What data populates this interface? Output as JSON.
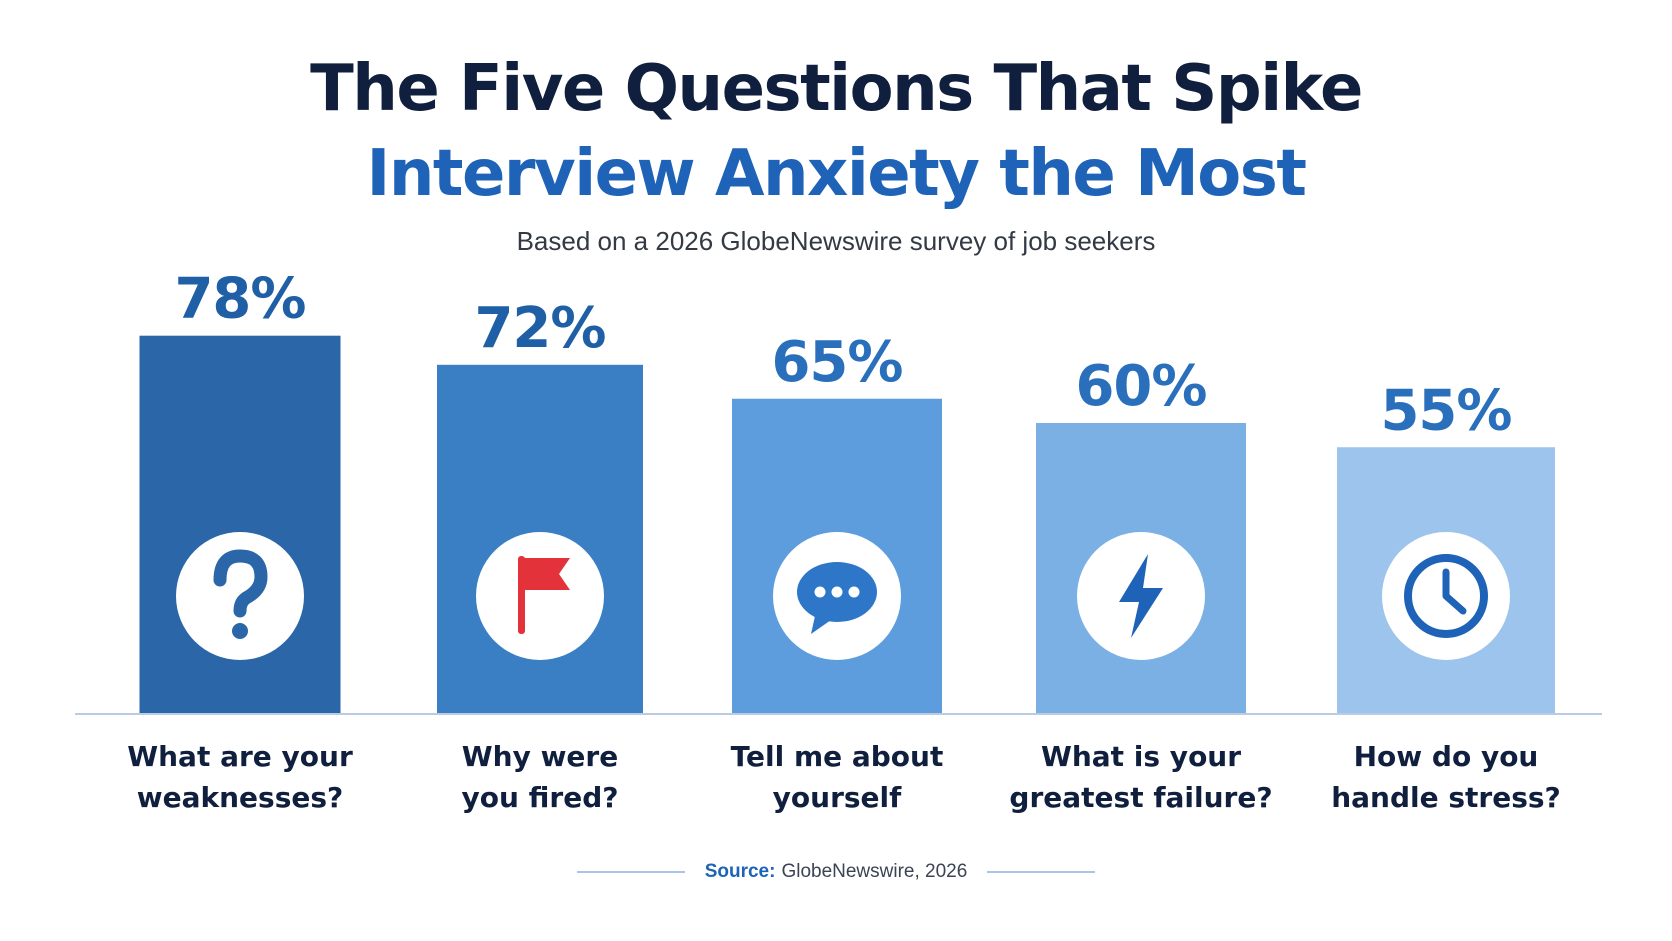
{
  "header": {
    "title_line1": "The Five Questions That Spike",
    "title_line2": "Interview Anxiety the Most",
    "subtitle": "Based on a 2026 GlobeNewswire survey of job seekers"
  },
  "source": {
    "label": "Source:",
    "text": "GlobeNewswire, 2026"
  },
  "colors": {
    "title_dark": "#0f1f3d",
    "title_blue": "#1e63b7",
    "bars": [
      "#2a66a8",
      "#3a7fc3",
      "#5d9ddd",
      "#7ab0e4",
      "#9cc4ec"
    ],
    "labels": [
      "#1f5fa5",
      "#1f5fa5",
      "#2a6fbc",
      "#2a6fbc",
      "#2a6fbc"
    ],
    "icon_flag": "#e4323b",
    "baseline": "#b9cce4"
  },
  "chart_data": {
    "type": "bar",
    "categories": [
      [
        "What are your",
        "weaknesses?"
      ],
      [
        "Why were",
        "you fired?"
      ],
      [
        "Tell me about",
        "yourself"
      ],
      [
        "What is your",
        "greatest failure?"
      ],
      [
        "How do you",
        "handle stress?"
      ]
    ],
    "values": [
      78,
      72,
      65,
      60,
      55
    ],
    "value_labels": [
      "78%",
      "72%",
      "65%",
      "60%",
      "55%"
    ],
    "icons": [
      "question-icon",
      "flag-icon",
      "chat-bubble-icon",
      "lightning-icon",
      "clock-icon"
    ],
    "ylim": [
      0,
      100
    ],
    "grid": false,
    "legend": "none"
  }
}
